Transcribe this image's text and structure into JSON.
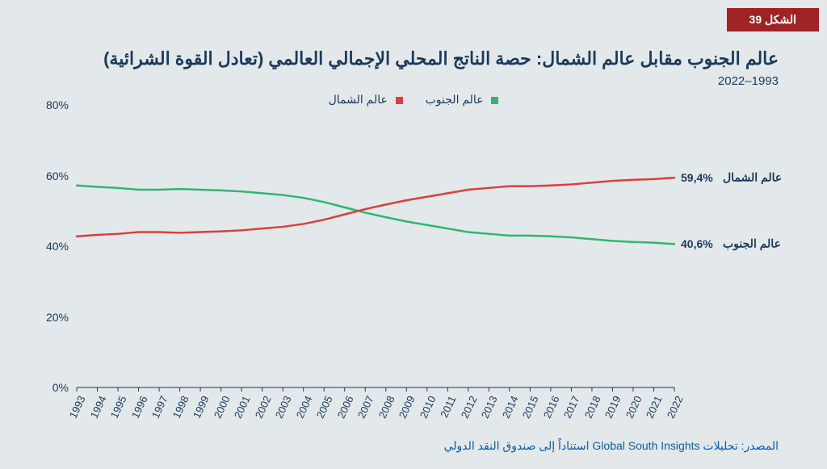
{
  "badge": "الشكل 39",
  "title": "عالم الجنوب مقابل عالم الشمال: حصة الناتج المحلي الإجمالي العالمي (تعادل القوة الشرائية)",
  "subtitle": "1993–2022",
  "source": "المصدر: تحليلات Global South Insights استناداً إلى صندوق النقد الدولي",
  "legend": {
    "south": "عالم الجنوب",
    "north": "عالم الشمال"
  },
  "colors": {
    "south": "#2fb673",
    "north": "#d9403a",
    "axis": "#1a3a5c",
    "tick": "#1a3a5c",
    "background": "#e3e8ea",
    "badge_bg": "#a02323"
  },
  "chart": {
    "type": "line",
    "ylim": [
      0,
      80
    ],
    "ytick_step": 20,
    "yticks": [
      0,
      20,
      40,
      60,
      80
    ],
    "years": [
      1993,
      1994,
      1995,
      1996,
      1997,
      1998,
      1999,
      2000,
      2001,
      2002,
      2003,
      2004,
      2005,
      2006,
      2007,
      2008,
      2009,
      2010,
      2011,
      2012,
      2013,
      2014,
      2015,
      2016,
      2017,
      2018,
      2019,
      2020,
      2021,
      2022
    ],
    "north": [
      42.8,
      43.2,
      43.5,
      44.0,
      44.0,
      43.8,
      44.0,
      44.2,
      44.5,
      45.0,
      45.5,
      46.3,
      47.5,
      49.0,
      50.5,
      51.8,
      53.0,
      54.0,
      55.0,
      56.0,
      56.5,
      57.0,
      57.0,
      57.2,
      57.5,
      58.0,
      58.5,
      58.8,
      59.0,
      59.4
    ],
    "south": [
      57.2,
      56.8,
      56.5,
      56.0,
      56.0,
      56.2,
      56.0,
      55.8,
      55.5,
      55.0,
      54.5,
      53.7,
      52.5,
      51.0,
      49.5,
      48.2,
      47.0,
      46.0,
      45.0,
      44.0,
      43.5,
      43.0,
      43.0,
      42.8,
      42.5,
      42.0,
      41.5,
      41.2,
      41.0,
      40.6
    ],
    "end_labels": {
      "north_value": "59,4%",
      "north_name": "عالم الشمال",
      "south_value": "40,6%",
      "south_name": "عالم الجنوب"
    },
    "line_width": 2.5,
    "title_fontsize": 22,
    "label_fontsize": 14
  }
}
